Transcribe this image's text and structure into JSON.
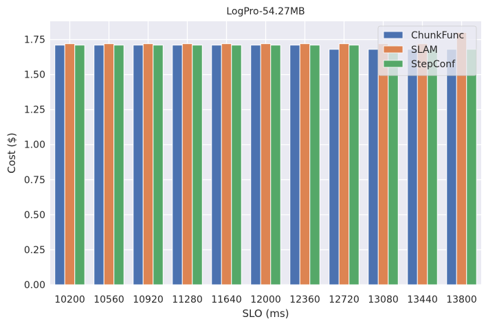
{
  "chart_data": {
    "type": "bar",
    "title": "LogPro-54.27MB",
    "xlabel": "SLO (ms)",
    "ylabel": "Cost ($)",
    "ylim": [
      0,
      1.88
    ],
    "yticks": [
      "0.00",
      "0.25",
      "0.50",
      "0.75",
      "1.00",
      "1.25",
      "1.50",
      "1.75"
    ],
    "grid": true,
    "legend_position": "top-right",
    "categories": [
      "10200",
      "10560",
      "10920",
      "11280",
      "11640",
      "12000",
      "12360",
      "12720",
      "13080",
      "13440",
      "13800"
    ],
    "series": [
      {
        "name": "ChunkFunc",
        "color": "#4c72b0",
        "values": [
          1.71,
          1.71,
          1.71,
          1.71,
          1.71,
          1.71,
          1.71,
          1.68,
          1.68,
          1.68,
          1.68
        ]
      },
      {
        "name": "SLAM",
        "color": "#dd8452",
        "values": [
          1.72,
          1.72,
          1.72,
          1.72,
          1.72,
          1.72,
          1.72,
          1.72,
          1.72,
          1.72,
          1.8
        ]
      },
      {
        "name": "StepConf",
        "color": "#55a868",
        "values": [
          1.71,
          1.71,
          1.71,
          1.71,
          1.71,
          1.71,
          1.71,
          1.71,
          1.71,
          1.68,
          1.68
        ]
      }
    ]
  }
}
